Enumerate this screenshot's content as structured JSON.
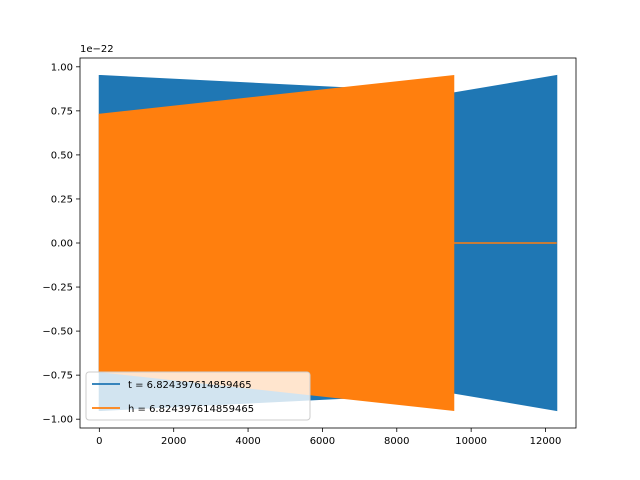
{
  "chart_data": {
    "type": "line",
    "title": "",
    "xlabel": "",
    "ylabel": "",
    "y_scale_label": "1e−22",
    "xlim": [
      -520,
      12820
    ],
    "ylim": [
      -1.05,
      1.05
    ],
    "x_ticks": [
      0,
      2000,
      4000,
      6000,
      8000,
      10000,
      12000
    ],
    "x_tick_labels": [
      "0",
      "2000",
      "4000",
      "6000",
      "8000",
      "10000",
      "12000"
    ],
    "y_ticks": [
      -1.0,
      -0.75,
      -0.5,
      -0.25,
      0.0,
      0.25,
      0.5,
      0.75,
      1.0
    ],
    "y_tick_labels": [
      "−1.00",
      "−0.75",
      "−0.50",
      "−0.25",
      "0.00",
      "0.25",
      "0.50",
      "0.75",
      "1.00"
    ],
    "grid": false,
    "legend_position": "lower-left",
    "series": [
      {
        "name": "t = 6.824397614859465",
        "color": "#1f77b4",
        "envelope": [
          {
            "x": 0,
            "upper": 0.95,
            "lower": -0.95
          },
          {
            "x": 40,
            "upper": 0.95,
            "lower": -0.95
          },
          {
            "x": 9500,
            "upper": 0.85,
            "lower": -0.85
          },
          {
            "x": 12300,
            "upper": 0.95,
            "lower": -0.95
          }
        ]
      },
      {
        "name": "h = 6.824397614859465",
        "color": "#ff7f0e",
        "envelope": [
          {
            "x": 0,
            "upper": 0.73,
            "lower": -0.73
          },
          {
            "x": 9530,
            "upper": 0.95,
            "lower": -0.95
          }
        ],
        "flat_segment": {
          "x_start": 9530,
          "x_end": 12300,
          "y": 0.0
        }
      }
    ]
  }
}
